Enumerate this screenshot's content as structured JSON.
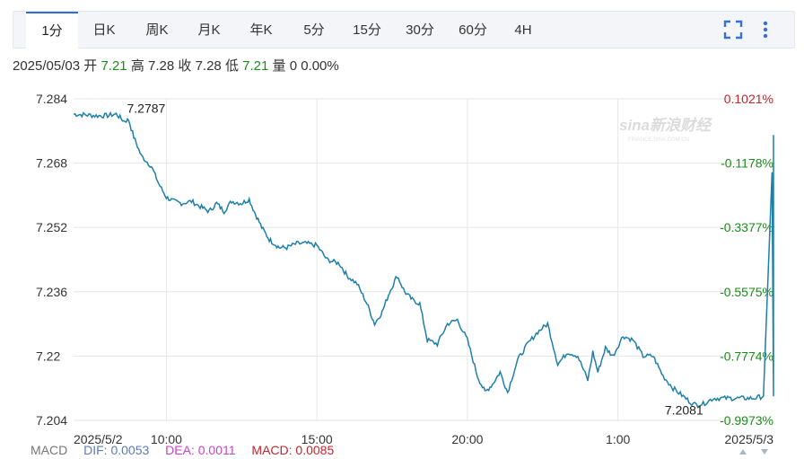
{
  "tabs": [
    {
      "label": "1分",
      "active": true
    },
    {
      "label": "日K"
    },
    {
      "label": "周K"
    },
    {
      "label": "月K"
    },
    {
      "label": "年K"
    },
    {
      "label": "5分"
    },
    {
      "label": "15分"
    },
    {
      "label": "30分"
    },
    {
      "label": "60分"
    },
    {
      "label": "4H"
    }
  ],
  "toolbar": {
    "fullscreen_icon": "fullscreen-icon",
    "menu_icon": "vertical-dots-menu-icon"
  },
  "quote": {
    "date": "2025/05/03",
    "open_label": "开",
    "open": "7.21",
    "high_label": "高",
    "high": "7.28",
    "close_label": "收",
    "close": "7.28",
    "low_label": "低",
    "low": "7.21",
    "volume_label": "量",
    "volume": "0",
    "change_pct": "0.00%"
  },
  "watermark": {
    "logo": "sina新浪财经",
    "sub": "FINANCE.SINA.COM.CN"
  },
  "macd": {
    "label": "MACD",
    "dif": "DIF: 0.0053",
    "dea": "DEA: 0.0011",
    "macd": "MACD: 0.0085"
  },
  "colors": {
    "line": "#1f7fa8",
    "up": "#1a8d1a",
    "down": "#c0262c",
    "dif": "#5b7bb5",
    "dea": "#c644c8",
    "macd": "#c0262c"
  },
  "chart_data": {
    "type": "line",
    "title": "",
    "xlabel": "",
    "ylabel": "",
    "grid": true,
    "ylim": [
      7.204,
      7.284
    ],
    "y_ticks": [
      "7.284",
      "7.268",
      "7.252",
      "7.236",
      "7.22",
      "7.204"
    ],
    "pct_ticks": [
      "0.1021%",
      "-0.1178%",
      "-0.3377%",
      "-0.5575%",
      "-0.7774%",
      "-0.9973%"
    ],
    "x_tick_labels": [
      "2025/5/2",
      "10:00",
      "15:00",
      "20:00",
      "1:00",
      "2025/5/3"
    ],
    "annotations": {
      "max_label": "7.2787",
      "min_label": "7.2081"
    },
    "series": [
      {
        "x": [
          "2025/5/2 06:55",
          "07:20",
          "07:40",
          "08:00",
          "08:20",
          "08:35",
          "08:45",
          "08:55",
          "09:10",
          "09:30",
          "09:45",
          "10:00",
          "10:15",
          "10:30",
          "10:50",
          "11:10",
          "11:25",
          "11:40",
          "11:55",
          "12:10",
          "12:30",
          "12:45",
          "12:55",
          "13:10",
          "13:25",
          "13:35",
          "13:45",
          "14:00",
          "14:20",
          "14:40",
          "15:00",
          "15:20",
          "15:45",
          "16:00",
          "16:20",
          "16:40",
          "16:55",
          "17:10",
          "17:25",
          "17:40",
          "17:55",
          "18:10",
          "18:25",
          "18:40",
          "19:00",
          "19:20",
          "19:40",
          "20:00",
          "20:20",
          "20:35",
          "20:50",
          "21:05",
          "21:20",
          "21:40",
          "22:00",
          "22:20",
          "22:40",
          "23:00",
          "23:20",
          "23:40",
          "00:00",
          "00:10",
          "00:20",
          "00:35",
          "00:50",
          "01:10",
          "01:30",
          "01:50",
          "02:10",
          "02:30",
          "02:50",
          "03:10",
          "03:30",
          "03:50",
          "04:10",
          "04:30",
          "04:50",
          "05:10",
          "05:30",
          "05:50",
          "06:10"
        ],
        "values": [
          7.2802,
          7.28,
          7.2798,
          7.2798,
          7.2802,
          7.2785,
          7.2787,
          7.2745,
          7.2698,
          7.2672,
          7.2628,
          7.2595,
          7.2585,
          7.258,
          7.2585,
          7.257,
          7.256,
          7.258,
          7.256,
          7.2585,
          7.258,
          7.259,
          7.256,
          7.252,
          7.249,
          7.248,
          7.247,
          7.247,
          7.248,
          7.248,
          7.2475,
          7.244,
          7.243,
          7.24,
          7.238,
          7.233,
          7.228,
          7.231,
          7.236,
          7.24,
          7.236,
          7.234,
          7.233,
          7.224,
          7.223,
          7.228,
          7.229,
          7.224,
          7.215,
          7.211,
          7.213,
          7.216,
          7.211,
          7.219,
          7.223,
          7.226,
          7.228,
          7.218,
          7.221,
          7.22,
          7.214,
          7.221,
          7.216,
          7.222,
          7.22,
          7.225,
          7.224,
          7.22,
          7.22,
          7.215,
          7.212,
          7.21,
          7.208,
          7.2081,
          7.2095,
          7.2095,
          7.2095,
          7.2095,
          7.2095,
          7.21,
          7.275
        ]
      }
    ]
  }
}
